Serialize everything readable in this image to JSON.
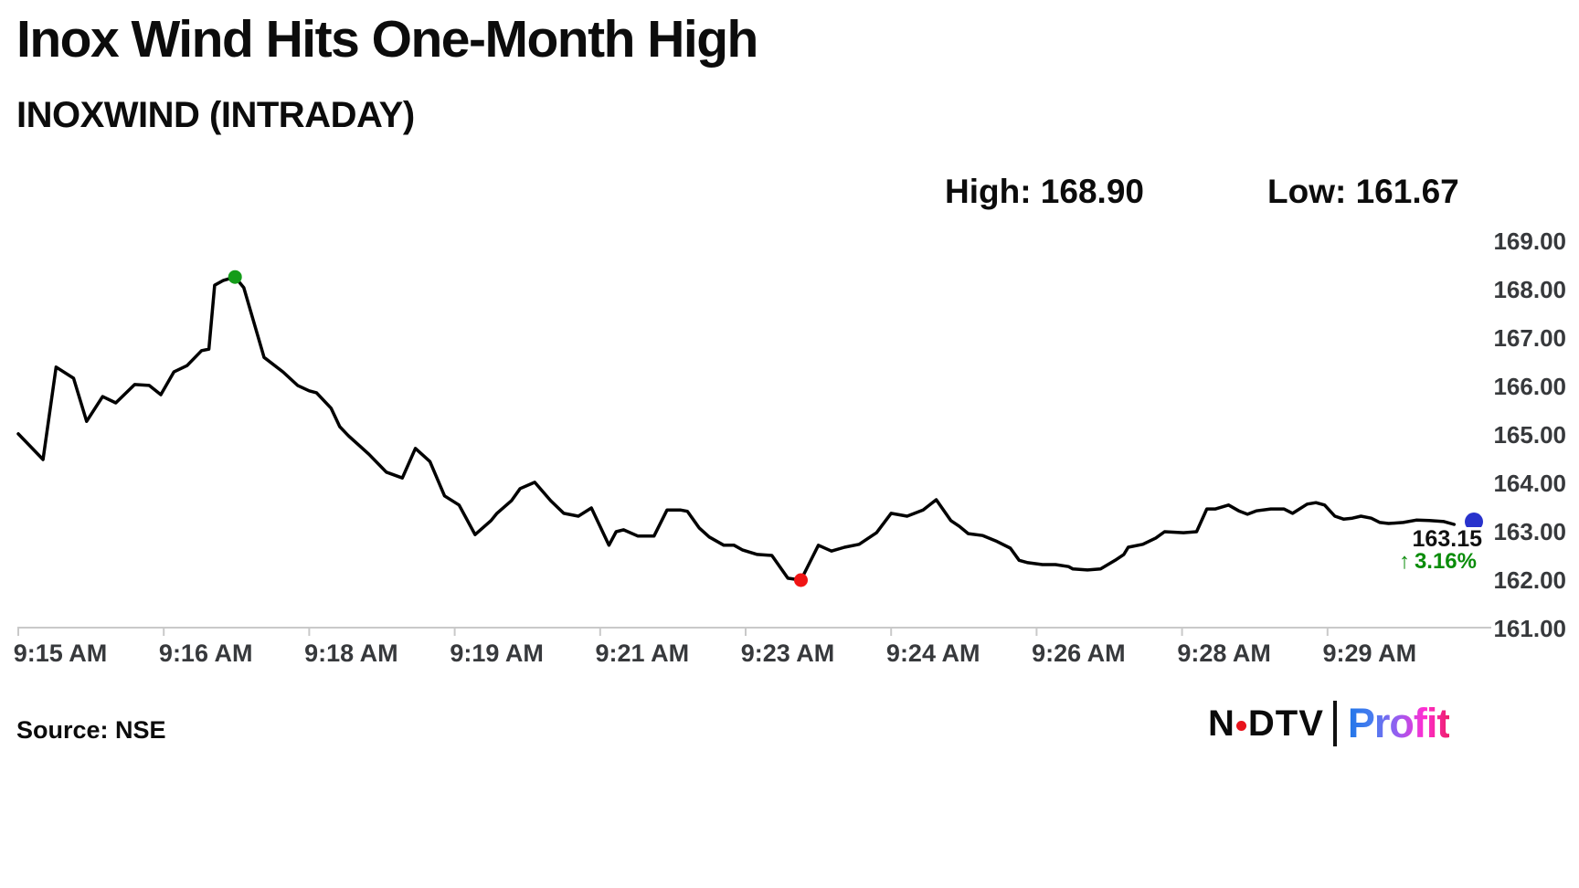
{
  "header": {
    "title": "Inox Wind Hits One-Month High",
    "subtitle": "INOXWIND (INTRADAY)",
    "high_label": "High: 168.90",
    "low_label": "Low: 161.67"
  },
  "price_tag": {
    "last_price": "163.15",
    "up_arrow": "↑",
    "change_percent": "3.16%"
  },
  "footer": {
    "source": "Source: NSE",
    "logo": {
      "ndtv_left": "N",
      "ndtv_right": "DTV",
      "profit": "Profit"
    }
  },
  "colors": {
    "line": "#000000",
    "axis_line": "#c9c9c9",
    "axis_text": "#37393c",
    "marker_high": "#149c19",
    "marker_low": "#f01414",
    "marker_last": "#2832cc",
    "pct_green": "#0a8c0a",
    "logo_red": "#e8131c",
    "profit_gradient": [
      "#2176e8",
      "#4a7df0",
      "#9a5cf0",
      "#ff2ed2",
      "#ee1f6b"
    ]
  },
  "chart_data": {
    "type": "line",
    "title": "INOXWIND (INTRADAY)",
    "high": 168.9,
    "low": 161.67,
    "last_price": 163.15,
    "change_percent_up": "3.16%",
    "grid": false,
    "legend": "none",
    "y_axis": {
      "side": "right",
      "min": 161,
      "max": 169,
      "step": 1,
      "labels": [
        "169.00",
        "168.00",
        "167.00",
        "166.00",
        "165.00",
        "164.00",
        "163.00",
        "162.00",
        "161.00"
      ]
    },
    "x_axis": {
      "window": "9:15 AM - 9:30 AM",
      "ticks": [
        {
          "f": 0.0,
          "label": "9:15 AM"
        },
        {
          "f": 0.1,
          "label": "9:16 AM"
        },
        {
          "f": 0.2,
          "label": "9:18 AM"
        },
        {
          "f": 0.3,
          "label": "9:19 AM"
        },
        {
          "f": 0.4,
          "label": "9:21 AM"
        },
        {
          "f": 0.5,
          "label": "9:23 AM"
        },
        {
          "f": 0.6,
          "label": "9:24 AM"
        },
        {
          "f": 0.7,
          "label": "9:26 AM"
        },
        {
          "f": 0.8,
          "label": "9:28 AM"
        },
        {
          "f": 0.9,
          "label": "9:29 AM"
        }
      ]
    },
    "series": [
      {
        "name": "INOXWIND intraday price",
        "points": [
          [
            0.0,
            165.02
          ],
          [
            0.017,
            164.49
          ],
          [
            0.026,
            166.4
          ],
          [
            0.038,
            166.17
          ],
          [
            0.047,
            165.28
          ],
          [
            0.058,
            165.79
          ],
          [
            0.067,
            165.66
          ],
          [
            0.08,
            166.04
          ],
          [
            0.09,
            166.02
          ],
          [
            0.098,
            165.83
          ],
          [
            0.107,
            166.3
          ],
          [
            0.116,
            166.43
          ],
          [
            0.126,
            166.74
          ],
          [
            0.131,
            166.77
          ],
          [
            0.135,
            168.09
          ],
          [
            0.141,
            168.19
          ],
          [
            0.149,
            168.26
          ],
          [
            0.155,
            168.04
          ],
          [
            0.169,
            166.6
          ],
          [
            0.182,
            166.3
          ],
          [
            0.192,
            166.02
          ],
          [
            0.2,
            165.91
          ],
          [
            0.205,
            165.87
          ],
          [
            0.215,
            165.55
          ],
          [
            0.221,
            165.17
          ],
          [
            0.227,
            164.98
          ],
          [
            0.234,
            164.79
          ],
          [
            0.241,
            164.6
          ],
          [
            0.253,
            164.23
          ],
          [
            0.264,
            164.11
          ],
          [
            0.273,
            164.72
          ],
          [
            0.283,
            164.45
          ],
          [
            0.293,
            163.74
          ],
          [
            0.303,
            163.55
          ],
          [
            0.314,
            162.94
          ],
          [
            0.325,
            163.23
          ],
          [
            0.329,
            163.38
          ],
          [
            0.339,
            163.64
          ],
          [
            0.345,
            163.89
          ],
          [
            0.355,
            164.02
          ],
          [
            0.366,
            163.64
          ],
          [
            0.375,
            163.38
          ],
          [
            0.385,
            163.32
          ],
          [
            0.394,
            163.49
          ],
          [
            0.406,
            162.72
          ],
          [
            0.411,
            163.0
          ],
          [
            0.416,
            163.04
          ],
          [
            0.426,
            162.91
          ],
          [
            0.437,
            162.91
          ],
          [
            0.446,
            163.45
          ],
          [
            0.455,
            163.45
          ],
          [
            0.46,
            163.42
          ],
          [
            0.468,
            163.08
          ],
          [
            0.475,
            162.89
          ],
          [
            0.485,
            162.72
          ],
          [
            0.492,
            162.72
          ],
          [
            0.498,
            162.62
          ],
          [
            0.508,
            162.53
          ],
          [
            0.518,
            162.51
          ],
          [
            0.529,
            162.04
          ],
          [
            0.538,
            162.0
          ],
          [
            0.55,
            162.72
          ],
          [
            0.559,
            162.6
          ],
          [
            0.568,
            162.68
          ],
          [
            0.578,
            162.74
          ],
          [
            0.59,
            162.98
          ],
          [
            0.6,
            163.38
          ],
          [
            0.611,
            163.32
          ],
          [
            0.622,
            163.45
          ],
          [
            0.631,
            163.66
          ],
          [
            0.641,
            163.23
          ],
          [
            0.647,
            163.11
          ],
          [
            0.653,
            162.96
          ],
          [
            0.663,
            162.92
          ],
          [
            0.672,
            162.81
          ],
          [
            0.682,
            162.66
          ],
          [
            0.688,
            162.41
          ],
          [
            0.694,
            162.36
          ],
          [
            0.704,
            162.32
          ],
          [
            0.713,
            162.32
          ],
          [
            0.722,
            162.28
          ],
          [
            0.725,
            162.23
          ],
          [
            0.735,
            162.21
          ],
          [
            0.744,
            162.23
          ],
          [
            0.754,
            162.41
          ],
          [
            0.76,
            162.53
          ],
          [
            0.763,
            162.68
          ],
          [
            0.773,
            162.74
          ],
          [
            0.782,
            162.87
          ],
          [
            0.788,
            163.0
          ],
          [
            0.801,
            162.98
          ],
          [
            0.81,
            163.0
          ],
          [
            0.817,
            163.47
          ],
          [
            0.823,
            163.47
          ],
          [
            0.832,
            163.55
          ],
          [
            0.839,
            163.43
          ],
          [
            0.845,
            163.36
          ],
          [
            0.851,
            163.43
          ],
          [
            0.861,
            163.47
          ],
          [
            0.87,
            163.47
          ],
          [
            0.876,
            163.38
          ],
          [
            0.886,
            163.57
          ],
          [
            0.892,
            163.6
          ],
          [
            0.898,
            163.55
          ],
          [
            0.905,
            163.32
          ],
          [
            0.911,
            163.26
          ],
          [
            0.917,
            163.28
          ],
          [
            0.923,
            163.32
          ],
          [
            0.93,
            163.28
          ],
          [
            0.936,
            163.19
          ],
          [
            0.942,
            163.17
          ],
          [
            0.952,
            163.19
          ],
          [
            0.961,
            163.24
          ],
          [
            0.97,
            163.23
          ],
          [
            0.98,
            163.21
          ],
          [
            0.987,
            163.15
          ]
        ]
      }
    ],
    "markers": {
      "session_high_on_line": {
        "f": 0.149,
        "price": 168.26
      },
      "session_low_on_line": {
        "f": 0.538,
        "price": 162.0
      },
      "last_point": {
        "f": 1.0,
        "price": 163.15
      }
    }
  }
}
